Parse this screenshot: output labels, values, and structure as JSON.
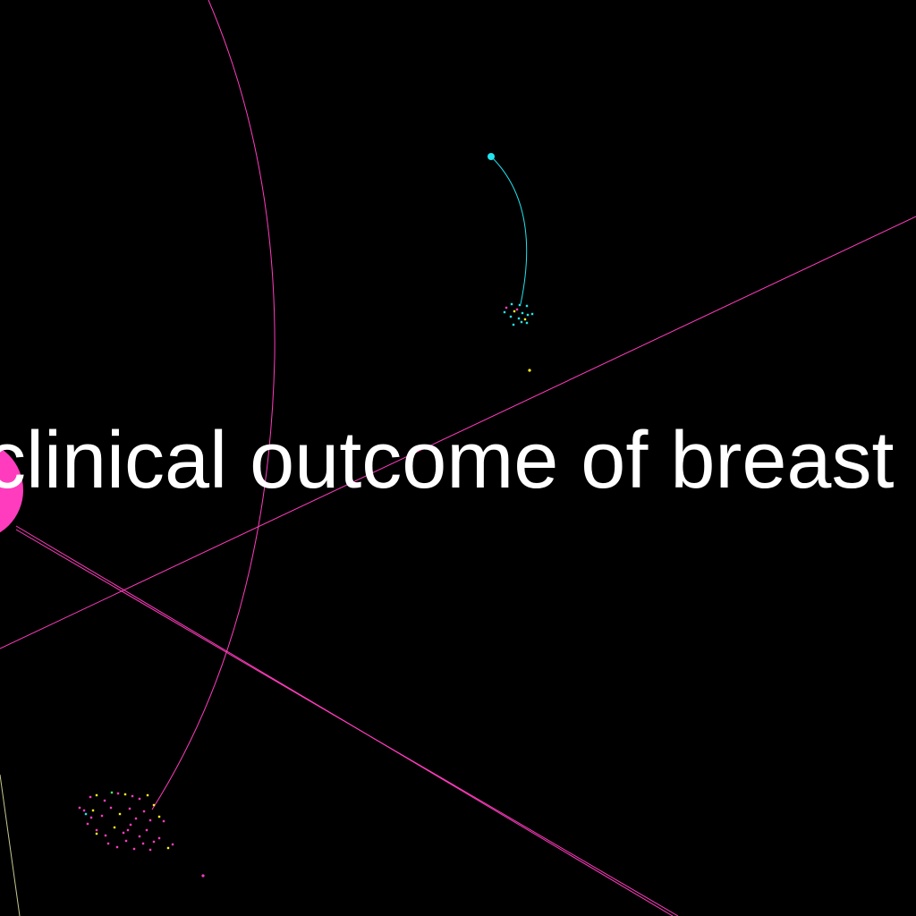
{
  "label": {
    "text": "clinical outcome of breast"
  },
  "colors": {
    "background": "#000000",
    "magenta": "#ff3cbe",
    "cyan": "#22e4ee",
    "yellow": "#ffee22",
    "green": "#44ee66",
    "olive": "#c8c890",
    "text": "#ffffff"
  }
}
